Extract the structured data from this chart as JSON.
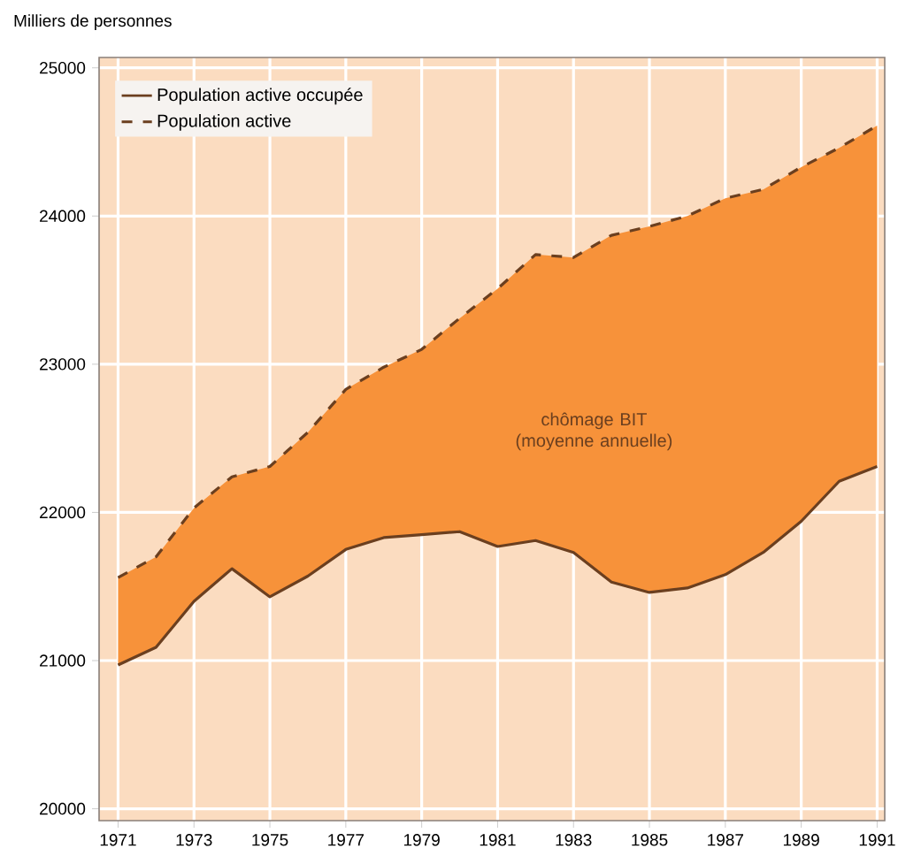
{
  "chart_data": {
    "type": "line",
    "ylabel": "Milliers de personnes",
    "x": [
      1971,
      1972,
      1973,
      1974,
      1975,
      1976,
      1977,
      1978,
      1979,
      1980,
      1981,
      1982,
      1983,
      1984,
      1985,
      1986,
      1987,
      1988,
      1989,
      1990,
      1991
    ],
    "series": [
      {
        "name": "Population active occupée",
        "color": "#6b3f1f",
        "line_style": "solid",
        "values": [
          20970,
          21090,
          21400,
          21620,
          21430,
          21570,
          21750,
          21830,
          21850,
          21870,
          21770,
          21810,
          21730,
          21530,
          21460,
          21490,
          21580,
          21730,
          21940,
          22210,
          22310
        ]
      },
      {
        "name": "Population active",
        "color": "#6b3f1f",
        "line_style": "dashed",
        "values": [
          21560,
          21700,
          22030,
          22240,
          22310,
          22540,
          22830,
          22980,
          23100,
          23310,
          23510,
          23740,
          23720,
          23870,
          23930,
          24000,
          24120,
          24180,
          24330,
          24460,
          24610
        ],
        "lower": [
          20970,
          21090,
          21400,
          21620,
          21430,
          21570,
          21750,
          21830,
          21850,
          21870,
          21770,
          21810,
          21730,
          21530,
          21460,
          21490,
          21580,
          21730,
          21940,
          22210,
          22310
        ],
        "upper": [
          21560,
          21700,
          22030,
          22240,
          22310,
          22540,
          22830,
          22980,
          23100,
          23310,
          23510,
          23740,
          23720,
          23870,
          23930,
          24000,
          24120,
          24180,
          24330,
          24460,
          24610
        ]
      }
    ],
    "annotations": [
      "chômage BIT (moyenne annuelle)"
    ],
    "xlim": [
      1970.5,
      1991.2
    ],
    "ylim": [
      19920,
      25070
    ],
    "xticks": [
      1971,
      1973,
      1975,
      1977,
      1979,
      1981,
      1983,
      1985,
      1987,
      1989,
      1991
    ],
    "yticks": [
      20000,
      21000,
      22000,
      23000,
      24000,
      25000
    ],
    "grid": true,
    "legend": "top left"
  }
}
